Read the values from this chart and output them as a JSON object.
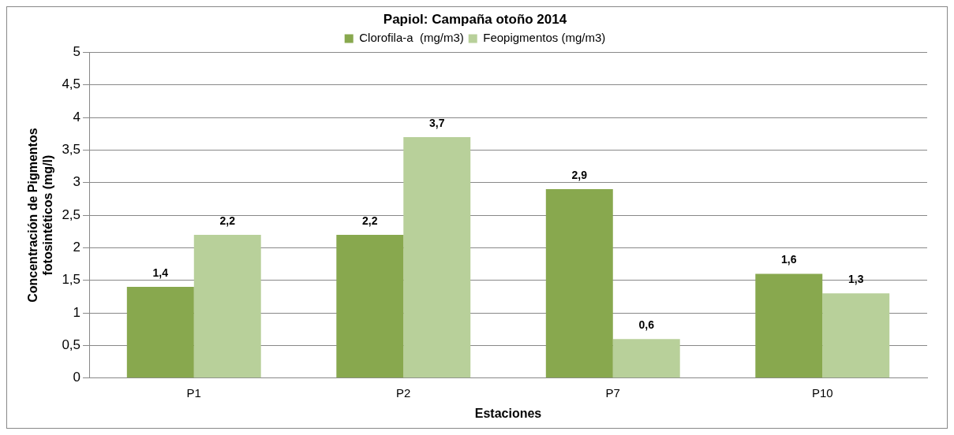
{
  "chart_data": {
    "type": "bar",
    "title": "Papiol: Campaña otoño 2014",
    "xlabel": "Estaciones",
    "ylabel": "Concentración de Pigmentos fotosintéticos (mg/l)",
    "categories": [
      "P1",
      "P2",
      "P7",
      "P10"
    ],
    "series": [
      {
        "name": "Clorofila-a  (mg/m3)",
        "color": "#88a84e",
        "values": [
          1.4,
          2.2,
          2.9,
          1.6
        ],
        "value_labels": [
          "1,4",
          "2,2",
          "2,9",
          "1,6"
        ]
      },
      {
        "name": "Feopigmentos (mg/m3)",
        "color": "#b8d09a",
        "values": [
          2.2,
          3.7,
          0.6,
          1.3
        ],
        "value_labels": [
          "2,2",
          "3,7",
          "0,6",
          "1,3"
        ]
      }
    ],
    "ylim": [
      0,
      5
    ],
    "yticks": [
      0,
      {
        "value": 0.5,
        "label": "0,5"
      },
      1,
      {
        "value": 1.5,
        "label": "1,5"
      },
      2,
      {
        "value": 2.5,
        "label": "2,5"
      },
      3,
      {
        "value": 3.5,
        "label": "3,5"
      },
      4,
      {
        "value": 4.5,
        "label": "4,5"
      },
      5
    ],
    "grid": "y",
    "legend": "top"
  }
}
